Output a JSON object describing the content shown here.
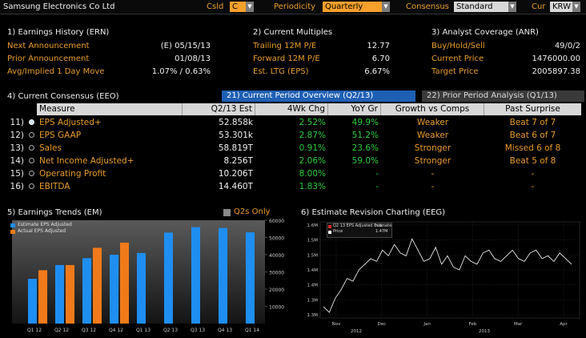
{
  "topbar": {
    "company": "Samsung Electronics Co Ltd",
    "csld_label": "Csld",
    "csld_value": "C",
    "periodicity_label": "Periodicity",
    "periodicity_value": "Quarterly",
    "consensus_label": "Consensus",
    "consensus_value": "Standard",
    "cur_label": "Cur",
    "cur_value": "KRW"
  },
  "earnings_history": {
    "title": "1) Earnings History (ERN)",
    "rows": [
      {
        "label": "Next Announcement",
        "value": "(E)  05/15/13"
      },
      {
        "label": "Prior Announcement",
        "value": "01/08/13"
      },
      {
        "label": "Avg/Implied 1 Day Move",
        "value": "1.07% / 0.63%"
      }
    ]
  },
  "current_multiples": {
    "title": "2) Current Multiples",
    "rows": [
      {
        "label": "Trailing 12M P/E",
        "value": "12.77"
      },
      {
        "label": "Forward 12M P/E",
        "value": "6.70"
      },
      {
        "label": "Est. LTG (EPS)",
        "value": "6.67%"
      }
    ]
  },
  "analyst_coverage": {
    "title": "3) Analyst Coverage (ANR)",
    "rows": [
      {
        "label": "Buy/Hold/Sell",
        "value": "49/0/2"
      },
      {
        "label": "Current Price",
        "value": "1476000.00"
      },
      {
        "label": "Target Price",
        "value": "2005897.38"
      }
    ]
  },
  "consensus": {
    "title": "4) Current Consensus (EEO)",
    "tab_current": "21) Current Period Overview (Q2/13)",
    "tab_prior": "22) Prior Period Analysis (Q1/13)",
    "headers": [
      "Measure",
      "Q2/13 Est",
      "4Wk Chg",
      "YoY Gr",
      "Growth vs Comps",
      "Past Surprise"
    ],
    "rows": [
      {
        "idx": "11)",
        "measure": "EPS Adjusted+",
        "est": "52.858k",
        "chg": "2.52%",
        "yoy": "49.9%",
        "growth": "Weaker",
        "surprise": "Beat 7 of 7"
      },
      {
        "idx": "12)",
        "measure": "EPS GAAP",
        "est": "53.301k",
        "chg": "2.87%",
        "yoy": "51.2%",
        "growth": "Weaker",
        "surprise": "Beat 6 of 7"
      },
      {
        "idx": "13)",
        "measure": "Sales",
        "est": "58.819T",
        "chg": "0.91%",
        "yoy": "23.6%",
        "growth": "Stronger",
        "surprise": "Missed 6 of 8"
      },
      {
        "idx": "14)",
        "measure": "Net Income Adjusted+",
        "est": "8.256T",
        "chg": "2.06%",
        "yoy": "59.0%",
        "growth": "Stronger",
        "surprise": "Beat 5 of 8"
      },
      {
        "idx": "15)",
        "measure": "Operating Profit",
        "est": "10.206T",
        "chg": "8.00%",
        "yoy": "-",
        "growth": "-",
        "surprise": "-"
      },
      {
        "idx": "16)",
        "measure": "EBITDA",
        "est": "14.460T",
        "chg": "1.83%",
        "yoy": "-",
        "growth": "-",
        "surprise": "-"
      }
    ]
  },
  "earnings_trends": {
    "title": "5) Earnings Trends (EM)",
    "q2s_label": "Q2s Only",
    "legend_estimate": "Estimate EPS Adjusted",
    "legend_actual": "Actual EPS Adjusted"
  },
  "revision_chart": {
    "title": "6) Estimate Revision Charting (EEG)",
    "legend_estimate": "Q2 13 EPS Adjusted Estimate",
    "legend_estimate_value": "n.a.",
    "legend_price": "Price",
    "legend_price_value": "1.47M"
  },
  "chart_data": [
    {
      "type": "bar",
      "categories": [
        "Q1 12",
        "Q2 12",
        "Q3 12",
        "Q4 12",
        "Q1 13",
        "Q2 13",
        "Q3 13",
        "Q4 13",
        "Q1 14"
      ],
      "series": [
        {
          "name": "Estimate EPS Adjusted",
          "values": [
            26000,
            34000,
            38000,
            40000,
            41000,
            52858,
            56000,
            55500,
            53000
          ]
        },
        {
          "name": "Actual EPS Adjusted",
          "values": [
            31000,
            34000,
            44000,
            47000,
            null,
            null,
            null,
            null,
            null
          ]
        }
      ],
      "yticks": [
        "60000",
        "50000",
        "40000",
        "30000",
        "20000",
        "10000"
      ],
      "ylim": [
        0,
        60000
      ],
      "colors": {
        "estimate": "#1f8ef1",
        "actual": "#f07a1a"
      }
    },
    {
      "type": "line",
      "xticks": [
        "Nov",
        "Dec",
        "Jan",
        "Feb",
        "Mar",
        "Apr"
      ],
      "year_labels": [
        "2012",
        "2013"
      ],
      "yticks": [
        "1.6M",
        "1.5M",
        "1.5M",
        "1.4M",
        "1.4M",
        "1.3M",
        "1.3M"
      ],
      "series": [
        {
          "name": "Price",
          "values": [
            1.32,
            1.3,
            1.35,
            1.38,
            1.42,
            1.41,
            1.45,
            1.47,
            1.49,
            1.48,
            1.52,
            1.5,
            1.54,
            1.51,
            1.5,
            1.56,
            1.52,
            1.48,
            1.49,
            1.53,
            1.47,
            1.5,
            1.46,
            1.45,
            1.5,
            1.48,
            1.47,
            1.51,
            1.52,
            1.49,
            1.48,
            1.5,
            1.52,
            1.49,
            1.48,
            1.51,
            1.52,
            1.49,
            1.5,
            1.48,
            1.51,
            1.49,
            1.47
          ]
        }
      ],
      "ylim": [
        1.28,
        1.62
      ]
    }
  ]
}
